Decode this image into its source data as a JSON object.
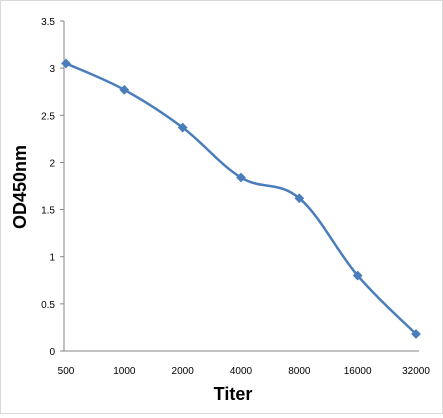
{
  "chart_data": {
    "type": "line",
    "title": "",
    "xlabel": "Titer",
    "ylabel": "OD450nm",
    "categories": [
      "500",
      "1000",
      "2000",
      "4000",
      "8000",
      "16000",
      "32000"
    ],
    "series": [
      {
        "values": [
          3.05,
          2.77,
          2.37,
          1.84,
          1.62,
          0.8,
          0.18
        ],
        "color": "#4a7ebb",
        "marker": "diamond",
        "smooth": true
      }
    ],
    "y_ticks": [
      "0",
      "0.5",
      "1",
      "1.5",
      "2",
      "2.5",
      "3",
      "3.5"
    ],
    "ylim": [
      0,
      3.5
    ],
    "grid": false,
    "legend": "none"
  }
}
